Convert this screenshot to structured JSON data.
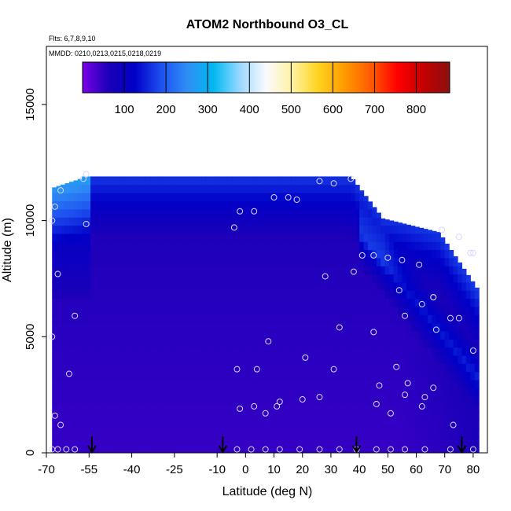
{
  "chart_data": {
    "type": "heatmap",
    "title": "ATOM2 Northbound O3_CL",
    "subtitle_flights": "Flts: 6,7,8,9,10",
    "subtitle_dates": "MMDD: 0210,0213,0215,0218,0219",
    "xlabel": "Latitude (deg N)",
    "ylabel": "Altitude (m)",
    "xlim": [
      -70,
      85
    ],
    "ylim": [
      0,
      17500
    ],
    "x_ticks": [
      -70,
      -55,
      -40,
      -25,
      -10,
      0,
      10,
      20,
      30,
      40,
      50,
      60,
      70,
      80
    ],
    "y_ticks": [
      0,
      5000,
      10000,
      15000
    ],
    "colorbar": {
      "range": [
        0,
        880
      ],
      "ticks": [
        100,
        200,
        300,
        400,
        500,
        600,
        700,
        800
      ],
      "colors": [
        "#7a00e6",
        "#1a00b8",
        "#0000c8",
        "#1e50f0",
        "#2f8ef5",
        "#00b8f0",
        "#9ad8ff",
        "#fafaff",
        "#fff2a0",
        "#ffd21e",
        "#ff9a00",
        "#ff5a00",
        "#ff0000",
        "#c40000",
        "#8a1010"
      ]
    },
    "flight_tracks_lat": [
      -54,
      -8,
      39,
      76
    ],
    "sample_points": [
      [
        -68,
        150
      ],
      [
        -66,
        150
      ],
      [
        -63,
        150
      ],
      [
        -60,
        150
      ],
      [
        -67,
        1600
      ],
      [
        -65,
        1200
      ],
      [
        -62,
        3400
      ],
      [
        -60,
        5900
      ],
      [
        -68,
        5000
      ],
      [
        -66,
        7700
      ],
      [
        -56,
        9850
      ],
      [
        -68,
        10000
      ],
      [
        -67,
        10600
      ],
      [
        -65,
        11300
      ],
      [
        -56,
        12000
      ],
      [
        -57,
        11800
      ],
      [
        -4,
        9700
      ],
      [
        -2,
        10400
      ],
      [
        3,
        10400
      ],
      [
        10,
        11000
      ],
      [
        15,
        11000
      ],
      [
        18,
        10900
      ],
      [
        26,
        11700
      ],
      [
        31,
        11600
      ],
      [
        37,
        11800
      ],
      [
        -3,
        3600
      ],
      [
        4,
        3600
      ],
      [
        -2,
        1900
      ],
      [
        3,
        2000
      ],
      [
        7,
        1700
      ],
      [
        8,
        4800
      ],
      [
        11,
        2000
      ],
      [
        12,
        2200
      ],
      [
        20,
        2300
      ],
      [
        21,
        4100
      ],
      [
        26,
        2400
      ],
      [
        31,
        3600
      ],
      [
        33,
        5400
      ],
      [
        28,
        7600
      ],
      [
        38,
        7800
      ],
      [
        -3,
        150
      ],
      [
        2,
        150
      ],
      [
        7,
        150
      ],
      [
        12,
        150
      ],
      [
        19,
        150
      ],
      [
        26,
        150
      ],
      [
        33,
        150
      ],
      [
        39,
        150
      ],
      [
        46,
        150
      ],
      [
        51,
        150
      ],
      [
        56,
        150
      ],
      [
        63,
        150
      ],
      [
        72,
        150
      ],
      [
        80,
        150
      ],
      [
        41,
        8500
      ],
      [
        45,
        8500
      ],
      [
        50,
        8400
      ],
      [
        55,
        8300
      ],
      [
        61,
        8100
      ],
      [
        54,
        7000
      ],
      [
        56,
        5900
      ],
      [
        62,
        6400
      ],
      [
        66,
        6700
      ],
      [
        66,
        6700
      ],
      [
        67,
        5300
      ],
      [
        72,
        5800
      ],
      [
        75,
        5800
      ],
      [
        80,
        4400
      ],
      [
        45,
        5200
      ],
      [
        47,
        2900
      ],
      [
        46,
        2100
      ],
      [
        51,
        1700
      ],
      [
        53,
        3700
      ],
      [
        57,
        3000
      ],
      [
        56,
        2500
      ],
      [
        62,
        2000
      ],
      [
        63,
        2400
      ],
      [
        66,
        2800
      ],
      [
        73,
        1200
      ],
      [
        69,
        9600
      ],
      [
        75,
        9300
      ],
      [
        79,
        8600
      ],
      [
        80,
        8600
      ]
    ]
  }
}
